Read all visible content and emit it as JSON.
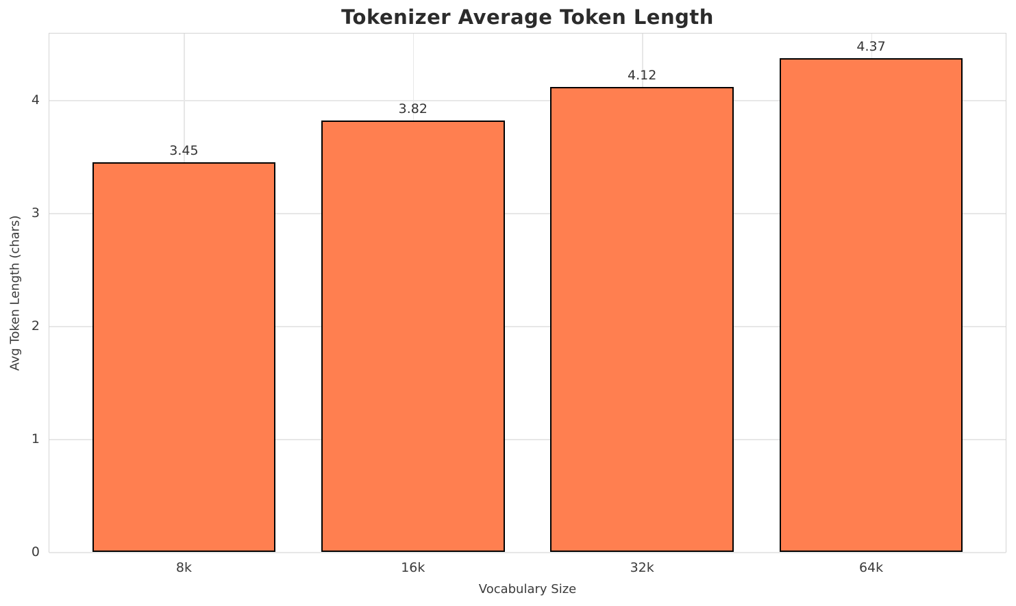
{
  "chart_data": {
    "type": "bar",
    "title": "Tokenizer Average Token Length",
    "xlabel": "Vocabulary Size",
    "ylabel": "Avg Token Length (chars)",
    "categories": [
      "8k",
      "16k",
      "32k",
      "64k"
    ],
    "values": [
      3.45,
      3.82,
      4.12,
      4.37
    ],
    "value_labels": [
      "3.45",
      "3.82",
      "4.12",
      "4.37"
    ],
    "yticks": [
      0,
      1,
      2,
      3,
      4
    ],
    "ytick_labels": [
      "0",
      "1",
      "2",
      "3",
      "4"
    ],
    "ylim": [
      0,
      4.59
    ],
    "grid": true,
    "legend": "none",
    "colors": {
      "bar_fill": "#FF7F50",
      "bar_edge": "#000000",
      "grid": "#e7e7e7",
      "spine": "#d4d4d4",
      "title_text": "#2b2b2b",
      "tick_text": "#3a3a3a",
      "background": "#ffffff"
    }
  }
}
